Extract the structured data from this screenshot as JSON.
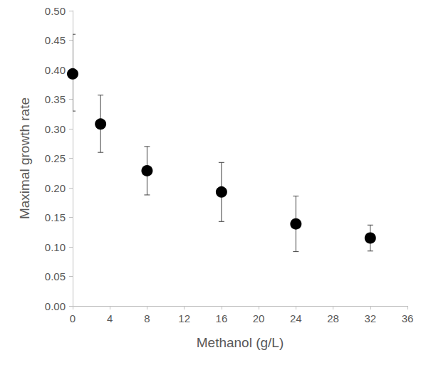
{
  "chart_data": {
    "type": "scatter",
    "x_label": "Methanol (g/L)",
    "y_label": "Maximal growth rate",
    "x": [
      0,
      3,
      8,
      16,
      24,
      32
    ],
    "values": [
      0.393,
      0.308,
      0.229,
      0.193,
      0.139,
      0.115
    ],
    "error_low": [
      0.33,
      0.26,
      0.188,
      0.143,
      0.092,
      0.093
    ],
    "error_high": [
      0.46,
      0.357,
      0.27,
      0.243,
      0.186,
      0.137
    ],
    "color": "#000000",
    "marker": "circle",
    "xlim": [
      0,
      36
    ],
    "xticks": [
      0,
      4,
      8,
      12,
      16,
      20,
      24,
      28,
      32,
      36
    ],
    "ylim": [
      0,
      0.5
    ],
    "yticks": [
      {
        "value": 0,
        "label": "0.00"
      },
      {
        "value": 0.05,
        "label": "0.05"
      },
      {
        "value": 0.1,
        "label": "0.10"
      },
      {
        "value": 0.15,
        "label": "0.15"
      },
      {
        "value": 0.2,
        "label": "0.20"
      },
      {
        "value": 0.25,
        "label": "0.25"
      },
      {
        "value": 0.3,
        "label": "0.30"
      },
      {
        "value": 0.35,
        "label": "0.35"
      },
      {
        "value": 0.4,
        "label": "0.40"
      },
      {
        "value": 0.45,
        "label": "0.45"
      },
      {
        "value": 0.5,
        "label": "0.50"
      }
    ],
    "grid": false
  }
}
